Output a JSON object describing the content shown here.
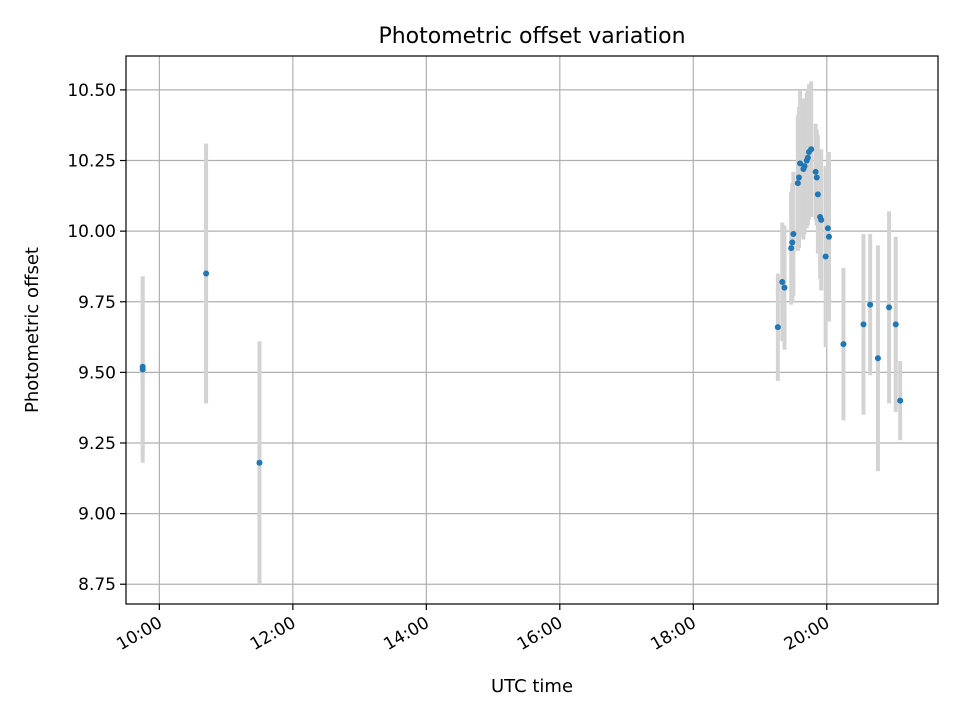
{
  "chart_data": {
    "type": "scatter",
    "title": "Photometric offset variation",
    "xlabel": "UTC time",
    "ylabel": "Photometric offset",
    "x_axis_type": "time",
    "xlim": [
      "09:30",
      "21:40"
    ],
    "ylim": [
      8.68,
      10.62
    ],
    "xticks": [
      "10:00",
      "12:00",
      "14:00",
      "16:00",
      "18:00",
      "20:00"
    ],
    "yticks": [
      "8.75",
      "9.00",
      "9.25",
      "9.50",
      "9.75",
      "10.00",
      "10.25",
      "10.50"
    ],
    "grid": true,
    "marker_color": "#1f77b4",
    "errorbar_color": "#d3d3d3",
    "series": [
      {
        "points": [
          {
            "x": "09:45",
            "y": 9.52,
            "err": 0.32
          },
          {
            "x": "09:45",
            "y": 9.51,
            "err": 0.33
          },
          {
            "x": "10:42",
            "y": 9.85,
            "err": 0.46
          },
          {
            "x": "11:30",
            "y": 9.18,
            "err": 0.43
          },
          {
            "x": "19:16",
            "y": 9.66,
            "err": 0.19
          },
          {
            "x": "19:20",
            "y": 9.82,
            "err": 0.21
          },
          {
            "x": "19:22",
            "y": 9.8,
            "err": 0.22
          },
          {
            "x": "19:28",
            "y": 9.94,
            "err": 0.2
          },
          {
            "x": "19:29",
            "y": 9.96,
            "err": 0.21
          },
          {
            "x": "19:30",
            "y": 9.99,
            "err": 0.22
          },
          {
            "x": "19:34",
            "y": 10.17,
            "err": 0.24
          },
          {
            "x": "19:35",
            "y": 10.19,
            "err": 0.25
          },
          {
            "x": "19:36",
            "y": 10.24,
            "err": 0.26
          },
          {
            "x": "19:39",
            "y": 10.22,
            "err": 0.25
          },
          {
            "x": "19:40",
            "y": 10.23,
            "err": 0.24
          },
          {
            "x": "19:42",
            "y": 10.25,
            "err": 0.24
          },
          {
            "x": "19:43",
            "y": 10.26,
            "err": 0.24
          },
          {
            "x": "19:44",
            "y": 10.28,
            "err": 0.24
          },
          {
            "x": "19:46",
            "y": 10.29,
            "err": 0.24
          },
          {
            "x": "19:50",
            "y": 10.21,
            "err": 0.17
          },
          {
            "x": "19:51",
            "y": 10.19,
            "err": 0.17
          },
          {
            "x": "19:52",
            "y": 10.13,
            "err": 0.21
          },
          {
            "x": "19:54",
            "y": 10.05,
            "err": 0.22
          },
          {
            "x": "19:55",
            "y": 10.04,
            "err": 0.25
          },
          {
            "x": "19:59",
            "y": 9.91,
            "err": 0.32
          },
          {
            "x": "20:01",
            "y": 10.01,
            "err": 0.27
          },
          {
            "x": "20:02",
            "y": 9.98,
            "err": 0.3
          },
          {
            "x": "20:15",
            "y": 9.6,
            "err": 0.27
          },
          {
            "x": "20:33",
            "y": 9.67,
            "err": 0.32
          },
          {
            "x": "20:39",
            "y": 9.74,
            "err": 0.25
          },
          {
            "x": "20:46",
            "y": 9.55,
            "err": 0.4
          },
          {
            "x": "20:56",
            "y": 9.73,
            "err": 0.34
          },
          {
            "x": "21:02",
            "y": 9.67,
            "err": 0.31
          },
          {
            "x": "21:06",
            "y": 9.4,
            "err": 0.14
          }
        ]
      }
    ]
  }
}
